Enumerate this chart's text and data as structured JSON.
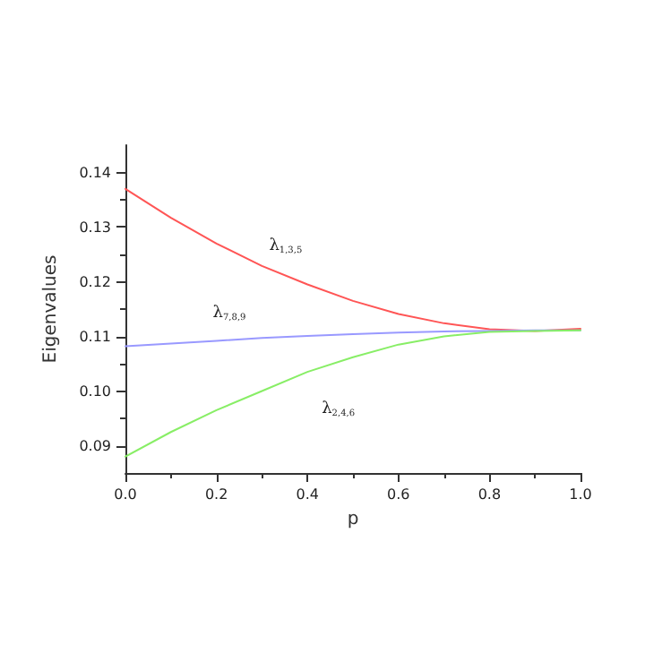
{
  "chart_data": {
    "type": "line",
    "xlabel": "p",
    "ylabel": "Eigenvalues",
    "x": [
      0,
      0.1,
      0.2,
      0.3,
      0.4,
      0.5,
      0.6,
      0.7,
      0.8,
      0.9,
      1.0
    ],
    "series": [
      {
        "name": "λ$_{1,3,5}$",
        "color": "#ff5555",
        "values": [
          0.137,
          0.1317,
          0.127,
          0.1229,
          0.1195,
          0.1165,
          0.1141,
          0.1124,
          0.1113,
          0.111,
          0.1114
        ]
      },
      {
        "name": "λ$_{7,8,9}$",
        "color": "#9999ff",
        "values": [
          0.1082,
          0.1087,
          0.1092,
          0.1097,
          0.1101,
          0.1104,
          0.1107,
          0.1109,
          0.111,
          0.1111,
          0.1111
        ]
      },
      {
        "name": "λ$_{2,4,6}$",
        "color": "#88ee66",
        "values": [
          0.088,
          0.0925,
          0.0965,
          0.1,
          0.1035,
          0.1062,
          0.1085,
          0.11,
          0.1108,
          0.111,
          0.1111
        ]
      }
    ],
    "xlim": [
      0,
      1
    ],
    "xticks": [
      {
        "value": 0,
        "label": "0.0"
      },
      0.2,
      0.4,
      0.6,
      0.8,
      {
        "value": 1,
        "label": "1.0"
      }
    ],
    "ylim": [
      0.085,
      0.145
    ],
    "yticks": [
      0.09,
      {
        "value": 0.1,
        "label": "0.10"
      },
      0.11,
      0.12,
      0.13,
      0.14
    ],
    "grid": false,
    "marker": "none",
    "line_style": "solid"
  }
}
